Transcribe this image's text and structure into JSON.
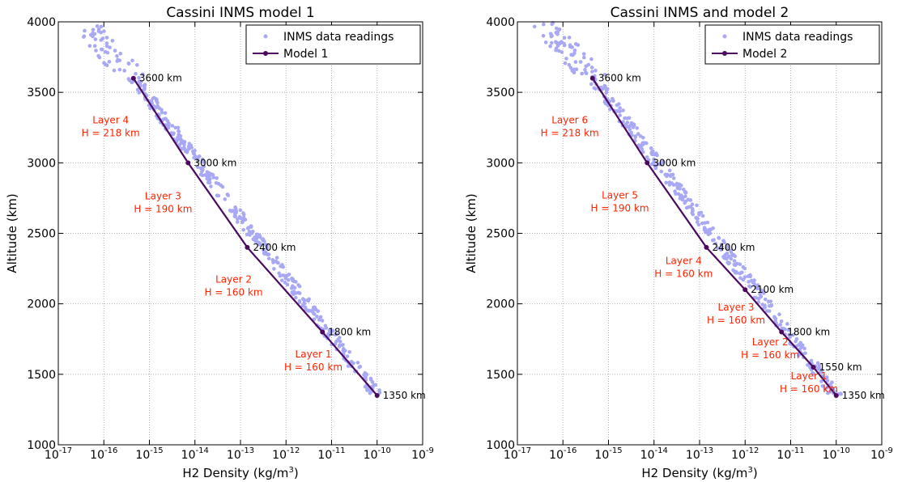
{
  "chart_data": [
    {
      "type": "line",
      "title": "Cassini INMS model 1",
      "xlabel": "H2 Density (kg/m",
      "xlabel_sup": "3",
      "xlabel_end": ")",
      "ylabel": "Altitude (km)",
      "x_scale": "log",
      "xlim_exp": [
        -17,
        -9
      ],
      "ylim": [
        1000,
        4000
      ],
      "y_ticks": [
        1000,
        1500,
        2000,
        2500,
        3000,
        3500,
        4000
      ],
      "x_tick_exponents": [
        -17,
        -16,
        -15,
        -14,
        -13,
        -12,
        -11,
        -10,
        -9
      ],
      "grid": true,
      "legend": "top-right",
      "legend_entries": [
        "INMS data readings",
        "Model 1"
      ],
      "series": [
        {
          "name": "Model 1",
          "color": "#4b0a5e",
          "points": [
            {
              "altitude": 1350,
              "density_exp": -10.0,
              "label": "1350 km"
            },
            {
              "altitude": 1800,
              "density_exp": -11.2,
              "label": "1800 km"
            },
            {
              "altitude": 2400,
              "density_exp": -12.85,
              "label": "2400 km"
            },
            {
              "altitude": 3000,
              "density_exp": -14.15,
              "label": "3000 km"
            },
            {
              "altitude": 3600,
              "density_exp": -15.35,
              "label": "3600 km"
            }
          ]
        }
      ],
      "layers": [
        {
          "label": "Layer 1",
          "h": "H = 160 km",
          "altitude": 1575,
          "density_exp": -11.4
        },
        {
          "label": "Layer 2",
          "h": "H = 160 km",
          "altitude": 2105,
          "density_exp": -13.15
        },
        {
          "label": "Layer 3",
          "h": "H = 190 km",
          "altitude": 2695,
          "density_exp": -14.7
        },
        {
          "label": "Layer 4",
          "h": "H = 218 km",
          "altitude": 3235,
          "density_exp": -15.85
        }
      ]
    },
    {
      "type": "line",
      "title": "Cassini INMS and model 2",
      "xlabel": "H2 Density (kg/m",
      "xlabel_sup": "3",
      "xlabel_end": ")",
      "ylabel": "Altitude (km)",
      "x_scale": "log",
      "xlim_exp": [
        -17,
        -9
      ],
      "ylim": [
        1000,
        4000
      ],
      "y_ticks": [
        1000,
        1500,
        2000,
        2500,
        3000,
        3500,
        4000
      ],
      "x_tick_exponents": [
        -17,
        -16,
        -15,
        -14,
        -13,
        -12,
        -11,
        -10,
        -9
      ],
      "grid": true,
      "legend": "top-right",
      "legend_entries": [
        "INMS data readings",
        "Model 2"
      ],
      "series": [
        {
          "name": "Model 2",
          "color": "#4b0a5e",
          "points": [
            {
              "altitude": 1350,
              "density_exp": -10.0,
              "label": "1350 km"
            },
            {
              "altitude": 1550,
              "density_exp": -10.5,
              "label": "1550 km"
            },
            {
              "altitude": 1800,
              "density_exp": -11.2,
              "label": "1800 km"
            },
            {
              "altitude": 2100,
              "density_exp": -12.0,
              "label": "2100 km"
            },
            {
              "altitude": 2400,
              "density_exp": -12.85,
              "label": "2400 km"
            },
            {
              "altitude": 3000,
              "density_exp": -14.15,
              "label": "3000 km"
            },
            {
              "altitude": 3600,
              "density_exp": -15.35,
              "label": "3600 km"
            }
          ]
        }
      ],
      "layers": [
        {
          "label": "Layer 1",
          "h": "H = 160 km",
          "altitude": 1420,
          "density_exp": -10.6
        },
        {
          "label": "Layer 2",
          "h": "H = 160 km",
          "altitude": 1660,
          "density_exp": -11.45
        },
        {
          "label": "Layer 3",
          "h": "H = 160 km",
          "altitude": 1905,
          "density_exp": -12.2
        },
        {
          "label": "Layer 4",
          "h": "H = 160 km",
          "altitude": 2235,
          "density_exp": -13.35
        },
        {
          "label": "Layer 5",
          "h": "H = 190 km",
          "altitude": 2700,
          "density_exp": -14.75
        },
        {
          "label": "Layer 6",
          "h": "H = 218 km",
          "altitude": 3235,
          "density_exp": -15.85
        }
      ]
    }
  ],
  "colors": {
    "data_points": "#a8a8f4",
    "model_line": "#4b0a5e",
    "layer_text": "#ff2200",
    "grid": "#b0b0b0"
  }
}
